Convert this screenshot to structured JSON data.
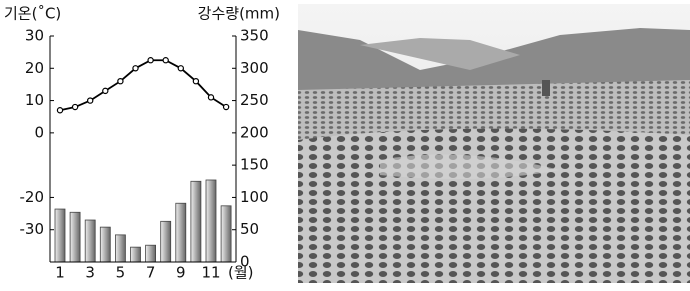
{
  "chart_data": {
    "type": "climate",
    "y_label": "기온(˚C)",
    "y2_label": "강수량(mm)",
    "x_unit": "(월)",
    "categories": [
      "1",
      null,
      "3",
      null,
      "5",
      null,
      "7",
      null,
      "9",
      null,
      "11",
      null
    ],
    "series": [
      {
        "type": "line",
        "color": "#000000",
        "axis": "y",
        "values": [
          7,
          8,
          10,
          13,
          16,
          20,
          22.5,
          22.5,
          20,
          16,
          11,
          8
        ]
      },
      {
        "type": "bar",
        "color": "#9a9a9a",
        "axis": "y2",
        "values": [
          82,
          77,
          65,
          54,
          42,
          23,
          26,
          63,
          91,
          125,
          127,
          87
        ]
      }
    ],
    "ylim": [
      -40,
      30
    ],
    "yticks": [
      -30,
      -20,
      0,
      10,
      20,
      30
    ],
    "y2lim": [
      0,
      350
    ],
    "y2ticks": [
      0,
      50,
      100,
      150,
      200,
      250,
      300,
      350
    ]
  }
}
